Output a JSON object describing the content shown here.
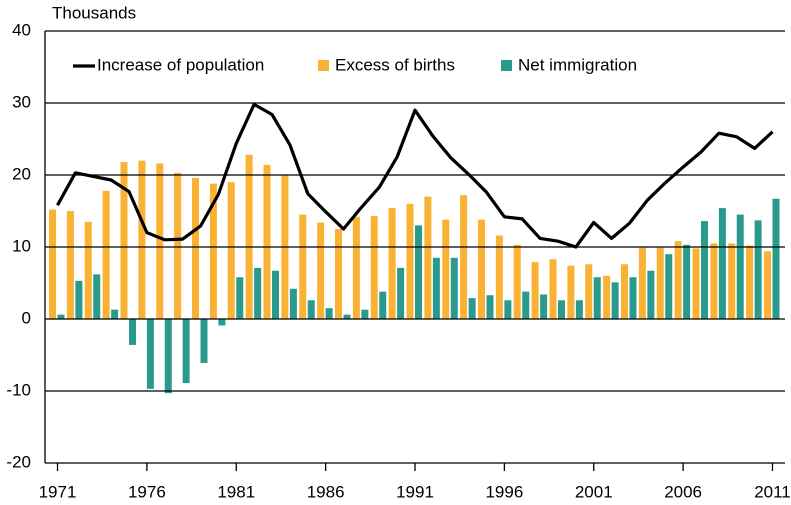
{
  "chart_data": {
    "type": "bar",
    "y_label": "Thousands",
    "x": [
      1971,
      1972,
      1973,
      1974,
      1975,
      1976,
      1977,
      1978,
      1979,
      1980,
      1981,
      1982,
      1983,
      1984,
      1985,
      1986,
      1987,
      1988,
      1989,
      1990,
      1991,
      1992,
      1993,
      1994,
      1995,
      1996,
      1997,
      1998,
      1999,
      2000,
      2001,
      2002,
      2003,
      2004,
      2005,
      2006,
      2007,
      2008,
      2009,
      2010,
      2011
    ],
    "series": [
      {
        "name": "Increase of population",
        "type": "line",
        "color": "#000000",
        "values": [
          15.8,
          20.3,
          19.8,
          19.3,
          17.7,
          12,
          11,
          11.1,
          12.9,
          17.3,
          24.4,
          29.8,
          28.4,
          24.2,
          17.4,
          14.9,
          12.5,
          15.5,
          18.3,
          22.5,
          29,
          25.4,
          22.4,
          20.1,
          17.6,
          14.2,
          13.9,
          11.2,
          10.8,
          10,
          13.4,
          11.2,
          13.3,
          16.5,
          18.9,
          21.1,
          23.2,
          25.8,
          25.3,
          23.7,
          26
        ]
      },
      {
        "name": "Excess of births",
        "type": "bar",
        "color": "#f9b233",
        "values": [
          15.2,
          15,
          13.5,
          17.8,
          21.8,
          22,
          21.6,
          20.3,
          19.6,
          18.8,
          19,
          22.8,
          21.4,
          20,
          14.5,
          13.4,
          12.5,
          14.2,
          14.3,
          15.4,
          16,
          17,
          13.8,
          17.2,
          13.8,
          11.6,
          10.3,
          7.9,
          8.3,
          7.4,
          7.6,
          6,
          7.6,
          9.9,
          9.9,
          10.8,
          9.8,
          10.5,
          10.5,
          10.2,
          9.4
        ]
      },
      {
        "name": "Net immigration",
        "type": "bar",
        "color": "#2a9a8c",
        "values": [
          0.6,
          5.3,
          6.2,
          1.3,
          -3.6,
          -9.7,
          -10.3,
          -8.9,
          -6.1,
          -0.9,
          5.8,
          7.1,
          6.7,
          4.2,
          2.6,
          1.5,
          0.6,
          1.3,
          3.8,
          7.1,
          13,
          8.5,
          8.5,
          2.9,
          3.3,
          2.6,
          3.8,
          3.4,
          2.6,
          2.6,
          5.8,
          5.1,
          5.8,
          6.7,
          9,
          10.3,
          13.6,
          15.4,
          14.5,
          13.7,
          16.7
        ]
      }
    ],
    "xlim": [
      1970.3,
      2011.7
    ],
    "xticks": [
      1971,
      1976,
      1981,
      1986,
      1991,
      1996,
      2001,
      2006,
      2011
    ],
    "ylim": [
      -20,
      40
    ],
    "yticks": [
      -20,
      -10,
      0,
      10,
      20,
      30,
      40
    ],
    "grid": true,
    "legend": "top"
  }
}
